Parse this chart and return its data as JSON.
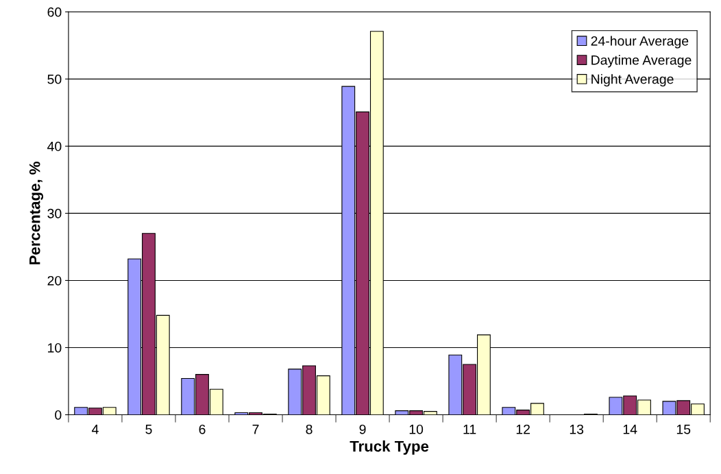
{
  "chart_data": {
    "type": "bar",
    "xlabel": "Truck Type",
    "ylabel": "Percentage, %",
    "categories": [
      "4",
      "5",
      "6",
      "7",
      "8",
      "9",
      "10",
      "11",
      "12",
      "13",
      "14",
      "15"
    ],
    "series": [
      {
        "name": "24-hour Average",
        "color": "#9999ff",
        "values": [
          1.1,
          23.2,
          5.4,
          0.3,
          6.8,
          48.9,
          0.6,
          8.9,
          1.1,
          null,
          2.6,
          2.0
        ]
      },
      {
        "name": "Daytime Average",
        "color": "#993366",
        "values": [
          1.0,
          27.0,
          6.0,
          0.3,
          7.3,
          45.1,
          0.6,
          7.5,
          0.7,
          null,
          2.8,
          2.1
        ]
      },
      {
        "name": "Night Average",
        "color": "#ffffcc",
        "values": [
          1.1,
          14.8,
          3.8,
          0.1,
          5.8,
          57.1,
          0.5,
          11.9,
          1.7,
          0.1,
          2.2,
          1.6
        ]
      }
    ],
    "ylim": [
      0,
      60
    ],
    "yticks": [
      0,
      10,
      20,
      30,
      40,
      50,
      60
    ],
    "grid": "y",
    "legend": "top right"
  }
}
